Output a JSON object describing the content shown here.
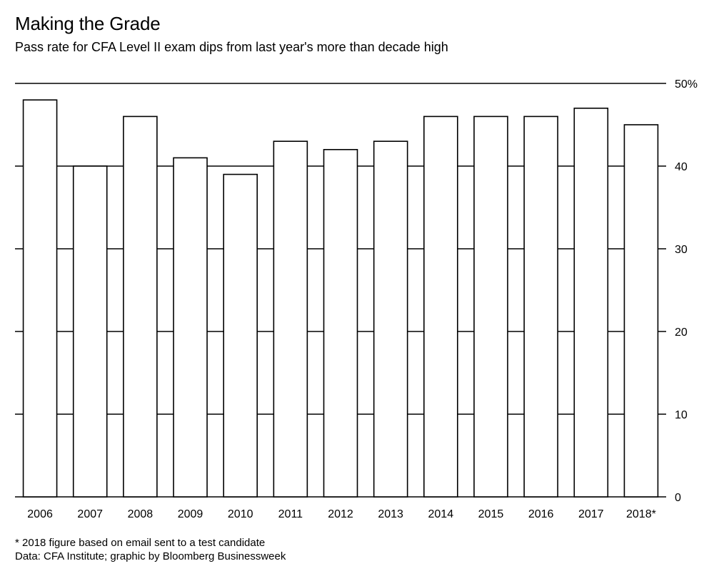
{
  "header": {
    "title": "Making the Grade",
    "subtitle": "Pass rate for CFA Level II exam dips from last year's more than decade high"
  },
  "footer": {
    "note": "* 2018 figure based on email sent to a test candidate",
    "source": "Data: CFA Institute; graphic by Bloomberg Businessweek"
  },
  "chart_data": {
    "type": "bar",
    "title": "Making the Grade",
    "subtitle": "Pass rate for CFA Level II exam dips from last year's more than decade high",
    "categories": [
      "2006",
      "2007",
      "2008",
      "2009",
      "2010",
      "2011",
      "2012",
      "2013",
      "2014",
      "2015",
      "2016",
      "2017",
      "2018*"
    ],
    "values": [
      48,
      40,
      46,
      41,
      39,
      43,
      42,
      43,
      46,
      46,
      46,
      47,
      45
    ],
    "ylim": [
      0,
      50
    ],
    "yticks": [
      0,
      10,
      20,
      30,
      40,
      50
    ],
    "ytick_labels": [
      "0",
      "10",
      "20",
      "30",
      "40",
      "50%"
    ],
    "y_axis_side": "right",
    "grid": true,
    "bar_fill": "#ffffff",
    "bar_stroke": "#000000",
    "grid_color": "#000000"
  }
}
